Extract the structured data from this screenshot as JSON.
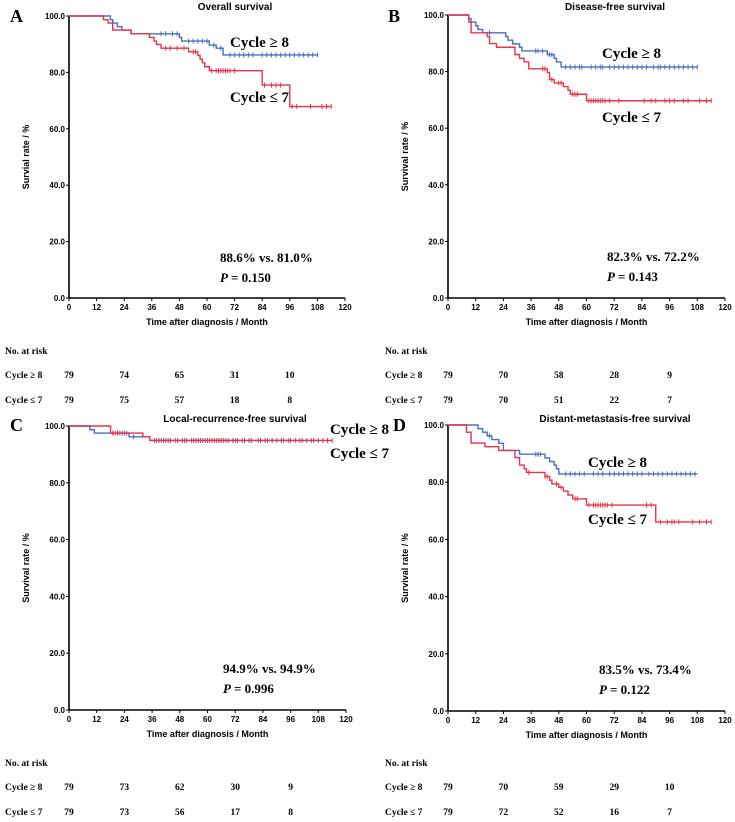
{
  "colors": {
    "cycle_ge8": "#4a6fc0",
    "cycle_le7": "#e8334a",
    "axis": "#000000"
  },
  "chart_data": [
    {
      "type": "line",
      "panel": "A",
      "title": "Overall survival",
      "xlabel": "Time after diagnosis / Month",
      "ylabel": "Survial rate / %",
      "xlim": [
        0,
        120
      ],
      "ylim": [
        0,
        100
      ],
      "xticks": [
        "0",
        "12",
        "24",
        "36",
        "48",
        "60",
        "72",
        "84",
        "96",
        "108",
        "120"
      ],
      "yticks": [
        "0.0",
        "20.0",
        "40.0",
        "60.0",
        "80.0",
        "100.0"
      ],
      "series": [
        {
          "name": "Cycle ≥ 8",
          "color": "#4a6fc0",
          "steps": [
            [
              0,
              100
            ],
            [
              18,
              98.7
            ],
            [
              19,
              97.5
            ],
            [
              21,
              96.2
            ],
            [
              23,
              95.0
            ],
            [
              27,
              93.7
            ],
            [
              48,
              92.4
            ],
            [
              49,
              91.1
            ],
            [
              61,
              89.7
            ],
            [
              64,
              88.6
            ],
            [
              67,
              86.2
            ],
            [
              108,
              86.2
            ]
          ],
          "censored": [
            40,
            42,
            45,
            47,
            52,
            54,
            56,
            58,
            60,
            63,
            66,
            70,
            72,
            74,
            76,
            78,
            80,
            84,
            86,
            88,
            90,
            92,
            94,
            96,
            98,
            100,
            102,
            104,
            106,
            108
          ]
        },
        {
          "name": "Cycle ≤ 7",
          "color": "#e8334a",
          "steps": [
            [
              0,
              100
            ],
            [
              15,
              98.7
            ],
            [
              17,
              97.5
            ],
            [
              19,
              95.0
            ],
            [
              27,
              93.7
            ],
            [
              35,
              92.4
            ],
            [
              37,
              91.1
            ],
            [
              38,
              89.9
            ],
            [
              40,
              88.6
            ],
            [
              52,
              87.3
            ],
            [
              56,
              86.0
            ],
            [
              57,
              84.7
            ],
            [
              58,
              83.4
            ],
            [
              59,
              82.0
            ],
            [
              61,
              80.6
            ],
            [
              84,
              75.5
            ],
            [
              96,
              67.9
            ],
            [
              114,
              67.9
            ]
          ],
          "censored": [
            42,
            44,
            47,
            50,
            54,
            55,
            62,
            64,
            65,
            66,
            67,
            68,
            69,
            70,
            72,
            85,
            88,
            90,
            92,
            97,
            99,
            105,
            110,
            112,
            114
          ]
        }
      ],
      "annotation": "88.6% vs. 81.0%",
      "p_label": "P",
      "p_value": "= 0.150",
      "risk_table": {
        "header": "No. at risk",
        "times": [
          0,
          24,
          48,
          72,
          96
        ],
        "rows": [
          {
            "label": "Cycle ≥ 8",
            "values": [
              "79",
              "74",
              "65",
              "31",
              "10"
            ]
          },
          {
            "label": "Cycle ≤ 7",
            "values": [
              "79",
              "75",
              "57",
              "18",
              "8"
            ]
          }
        ]
      }
    },
    {
      "type": "line",
      "panel": "B",
      "title": "Disease-free survival",
      "xlabel": "Time after diagnosis / Month",
      "ylabel": "Survival rate / %",
      "xlim": [
        0,
        120
      ],
      "ylim": [
        0,
        100
      ],
      "xticks": [
        "0",
        "12",
        "24",
        "36",
        "48",
        "60",
        "72",
        "84",
        "96",
        "108",
        "120"
      ],
      "yticks": [
        "0.0",
        "20.0",
        "40.0",
        "60.0",
        "80.0",
        "100.0"
      ],
      "series": [
        {
          "name": "Cycle ≥ 8",
          "color": "#4a6fc0",
          "steps": [
            [
              0,
              100
            ],
            [
              9,
              98.7
            ],
            [
              10,
              97.5
            ],
            [
              12,
              96.2
            ],
            [
              13,
              94.9
            ],
            [
              15,
              93.7
            ],
            [
              25,
              92.4
            ],
            [
              26,
              91.1
            ],
            [
              28,
              89.8
            ],
            [
              31,
              88.6
            ],
            [
              32,
              87.3
            ],
            [
              43,
              86.0
            ],
            [
              46,
              84.7
            ],
            [
              47,
              83.4
            ],
            [
              49,
              81.6
            ],
            [
              108,
              81.6
            ]
          ],
          "censored": [
            18,
            38,
            39,
            41,
            44,
            45,
            51,
            53,
            55,
            57,
            58,
            62,
            64,
            66,
            67,
            70,
            72,
            74,
            76,
            78,
            80,
            82,
            84,
            86,
            89,
            91,
            92,
            94,
            96,
            98,
            100,
            102,
            104,
            106,
            108
          ]
        },
        {
          "name": "Cycle ≤ 7",
          "color": "#e8334a",
          "steps": [
            [
              0,
              100
            ],
            [
              9,
              97.5
            ],
            [
              10,
              93.7
            ],
            [
              17,
              92.4
            ],
            [
              18,
              89.9
            ],
            [
              21,
              88.6
            ],
            [
              29,
              86.0
            ],
            [
              31,
              84.7
            ],
            [
              33,
              83.4
            ],
            [
              35,
              81.0
            ],
            [
              43,
              79.7
            ],
            [
              44,
              77.2
            ],
            [
              46,
              76.0
            ],
            [
              50,
              74.7
            ],
            [
              52,
              73.4
            ],
            [
              53,
              72.0
            ],
            [
              60,
              69.7
            ],
            [
              114,
              69.7
            ]
          ],
          "censored": [
            41,
            42,
            45,
            48,
            49,
            54,
            55,
            56,
            61,
            62,
            63,
            64,
            65,
            66,
            67,
            68,
            70,
            74,
            85,
            88,
            90,
            94,
            96,
            98,
            102,
            104,
            109,
            112,
            114
          ]
        }
      ],
      "annotation": "82.3% vs. 72.2%",
      "p_label": "P",
      "p_value": "= 0.143",
      "risk_table": {
        "header": "No. at risk",
        "times": [
          0,
          24,
          48,
          72,
          96
        ],
        "rows": [
          {
            "label": "Cycle ≥ 8",
            "values": [
              "79",
              "70",
              "58",
              "28",
              "9"
            ]
          },
          {
            "label": "Cycle ≤ 7",
            "values": [
              "79",
              "70",
              "51",
              "22",
              "7"
            ]
          }
        ]
      }
    },
    {
      "type": "line",
      "panel": "C",
      "title": "Local-recurrence-free survival",
      "xlabel": "Time after diagnosis / Month",
      "ylabel": "Survival rate / %",
      "xlim": [
        0,
        120
      ],
      "ylim": [
        0,
        100
      ],
      "xticks": [
        "0",
        "12",
        "24",
        "36",
        "48",
        "60",
        "72",
        "84",
        "96",
        "108",
        "120"
      ],
      "yticks": [
        "0.0",
        "20.0",
        "40.0",
        "60.0",
        "80.0",
        "100.0"
      ],
      "series": [
        {
          "name": "Cycle ≥ 8",
          "color": "#4a6fc0",
          "steps": [
            [
              0,
              100
            ],
            [
              9,
              98.7
            ],
            [
              11,
              97.5
            ],
            [
              26,
              96.2
            ],
            [
              35,
              94.9
            ],
            [
              108,
              94.9
            ]
          ],
          "censored": [
            19,
            21,
            23,
            25,
            28,
            38,
            40,
            43,
            46,
            50,
            53,
            57,
            60,
            64,
            68,
            72,
            75,
            78,
            82,
            86,
            90,
            93,
            96,
            100,
            103,
            106,
            108
          ]
        },
        {
          "name": "Cycle ≤ 7",
          "color": "#e8334a",
          "steps": [
            [
              0,
              100
            ],
            [
              18,
              97.5
            ],
            [
              32,
              96.2
            ],
            [
              35,
              94.9
            ],
            [
              114,
              94.9
            ]
          ],
          "censored": [
            19,
            20,
            22,
            24,
            37,
            39,
            41,
            42,
            44,
            47,
            49,
            51,
            54,
            55,
            56,
            58,
            59,
            61,
            62,
            63,
            65,
            66,
            67,
            69,
            71,
            73,
            76,
            79,
            83,
            85,
            88,
            92,
            95,
            98,
            101,
            105,
            110,
            112,
            114
          ]
        }
      ],
      "annotation": "94.9% vs. 94.9%",
      "p_label": "P",
      "p_value": "= 0.996",
      "risk_table": {
        "header": "No. at risk",
        "times": [
          0,
          24,
          48,
          72,
          96
        ],
        "rows": [
          {
            "label": "Cycle ≥ 8",
            "values": [
              "79",
              "73",
              "62",
              "30",
              "9"
            ]
          },
          {
            "label": "Cycle ≤ 7",
            "values": [
              "79",
              "73",
              "56",
              "17",
              "8"
            ]
          }
        ]
      }
    },
    {
      "type": "line",
      "panel": "D",
      "title": "Distant-metastasis-free survival",
      "xlabel": "Time after diagnosis / Month",
      "ylabel": "Survival rate / %",
      "xlim": [
        0,
        120
      ],
      "ylim": [
        0,
        100
      ],
      "xticks": [
        "0",
        "12",
        "24",
        "36",
        "48",
        "60",
        "72",
        "84",
        "96",
        "108",
        "120"
      ],
      "yticks": [
        "0.0",
        "20.0",
        "40.0",
        "60.0",
        "80.0",
        "100.0"
      ],
      "series": [
        {
          "name": "Cycle ≥ 8",
          "color": "#4a6fc0",
          "steps": [
            [
              0,
              100
            ],
            [
              13,
              98.7
            ],
            [
              15,
              97.5
            ],
            [
              17,
              96.2
            ],
            [
              19,
              94.9
            ],
            [
              22,
              93.6
            ],
            [
              24,
              91.1
            ],
            [
              31,
              89.8
            ],
            [
              42,
              88.5
            ],
            [
              44,
              87.2
            ],
            [
              46,
              86.0
            ],
            [
              47,
              84.7
            ],
            [
              48,
              82.9
            ],
            [
              108,
              82.9
            ]
          ],
          "censored": [
            18,
            38,
            39,
            40,
            51,
            53,
            55,
            57,
            59,
            63,
            65,
            67,
            70,
            72,
            74,
            76,
            78,
            80,
            82,
            84,
            87,
            89,
            91,
            93,
            95,
            97,
            99,
            101,
            103,
            105,
            107
          ]
        },
        {
          "name": "Cycle ≤ 7",
          "color": "#e8334a",
          "steps": [
            [
              0,
              100
            ],
            [
              8,
              97.5
            ],
            [
              10,
              93.7
            ],
            [
              16,
              92.4
            ],
            [
              22,
              91.1
            ],
            [
              29,
              88.6
            ],
            [
              31,
              86.0
            ],
            [
              33,
              84.7
            ],
            [
              34,
              83.4
            ],
            [
              42,
              82.0
            ],
            [
              44,
              80.7
            ],
            [
              45,
              79.4
            ],
            [
              48,
              78.2
            ],
            [
              50,
              76.9
            ],
            [
              52,
              75.5
            ],
            [
              54,
              74.2
            ],
            [
              60,
              72.0
            ],
            [
              90,
              66.1
            ],
            [
              114,
              66.1
            ]
          ],
          "censored": [
            35,
            42,
            43,
            47,
            49,
            55,
            56,
            61,
            63,
            64,
            65,
            66,
            67,
            68,
            69,
            71,
            86,
            88,
            92,
            95,
            97,
            98,
            100,
            106,
            109,
            112,
            114
          ]
        }
      ],
      "annotation": "83.5% vs. 73.4%",
      "p_label": "P",
      "p_value": "= 0.122",
      "risk_table": {
        "header": "No. at risk",
        "times": [
          0,
          24,
          48,
          72,
          96
        ],
        "rows": [
          {
            "label": "Cycle ≥ 8",
            "values": [
              "79",
              "70",
              "59",
              "29",
              "10"
            ]
          },
          {
            "label": "Cycle ≤ 7",
            "values": [
              "79",
              "72",
              "52",
              "16",
              "7"
            ]
          }
        ]
      }
    }
  ]
}
